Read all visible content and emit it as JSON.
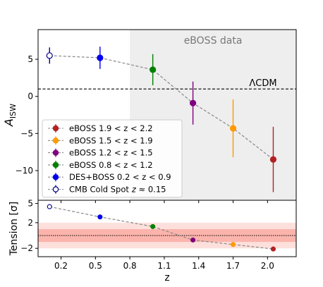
{
  "chart_data": [
    {
      "type": "scatter",
      "panel": "top",
      "xlabel": "",
      "ylabel": "A_ISW",
      "ylabel_main": "A",
      "ylabel_sub": "ISW",
      "xlim": [
        0.0,
        2.25
      ],
      "ylim": [
        -14,
        9
      ],
      "yticks": [
        "5",
        "0",
        "−5",
        "−10"
      ],
      "ytick_values": [
        5,
        0,
        -5,
        -10
      ],
      "shaded_region": {
        "x_from": 0.8,
        "x_to": 2.25,
        "label": "eBOSS data",
        "color": "#eeeeee"
      },
      "reference_line": {
        "y": 1,
        "label": "ΛCDM"
      },
      "trend_line": {
        "style": "dashed",
        "color": "#888888"
      },
      "series": [
        {
          "name": "eBOSS 1.9 < z < 2.2",
          "color": "#b22222",
          "filled": true,
          "x": 2.05,
          "y": -8.5,
          "err": 4.4
        },
        {
          "name": "eBOSS 1.5 < z < 1.9",
          "color": "#ff9a00",
          "filled": true,
          "x": 1.7,
          "y": -4.3,
          "err": 3.9
        },
        {
          "name": "eBOSS 1.2 < z < 1.5",
          "color": "#800080",
          "filled": true,
          "x": 1.35,
          "y": -0.9,
          "err": 2.9
        },
        {
          "name": "eBOSS 0.8 < z < 1.2",
          "color": "#008000",
          "filled": true,
          "x": 1.0,
          "y": 3.6,
          "err": 2.1
        },
        {
          "name": "DES+BOSS 0.2 < z < 0.9",
          "color": "#0000ee",
          "filled": true,
          "x": 0.54,
          "y": 5.2,
          "err": 1.5
        },
        {
          "name": "CMB Cold Spot z ≈ 0.15",
          "name_main": "CMB Cold Spot",
          "name_z": "z",
          "name_rest": " ≈ 0.15",
          "color": "#00008b",
          "filled": false,
          "x": 0.1,
          "y": 5.5,
          "err": 1.1
        }
      ]
    },
    {
      "type": "scatter",
      "panel": "bottom",
      "xlabel": "z",
      "ylabel": "Tension [σ]",
      "xlim": [
        0.0,
        2.25
      ],
      "ylim": [
        -3.3,
        5.5
      ],
      "xticks": [
        "0.2",
        "0.5",
        "0.8",
        "1.1",
        "1.4",
        "1.7",
        "2.0"
      ],
      "xtick_values": [
        0.2,
        0.5,
        0.8,
        1.1,
        1.4,
        1.7,
        2.0
      ],
      "yticks": [
        "5",
        "2",
        "−2"
      ],
      "ytick_values": [
        5,
        2,
        -2
      ],
      "reference_line": {
        "y": 0,
        "style": "dotted"
      },
      "bands": [
        {
          "from": -2,
          "to": 2,
          "color": "#fde0dc"
        },
        {
          "from": -1,
          "to": 1,
          "color": "#fbb4ac"
        }
      ],
      "points": [
        {
          "x": 0.1,
          "y": 4.5,
          "color": "#00008b",
          "filled": false
        },
        {
          "x": 0.54,
          "y": 2.9,
          "color": "#0000ee",
          "filled": true
        },
        {
          "x": 1.0,
          "y": 1.4,
          "color": "#008000",
          "filled": true
        },
        {
          "x": 1.35,
          "y": -0.7,
          "color": "#800080",
          "filled": true
        },
        {
          "x": 1.7,
          "y": -1.4,
          "color": "#ff9a00",
          "filled": true
        },
        {
          "x": 2.05,
          "y": -2.1,
          "color": "#b22222",
          "filled": true
        }
      ]
    }
  ]
}
